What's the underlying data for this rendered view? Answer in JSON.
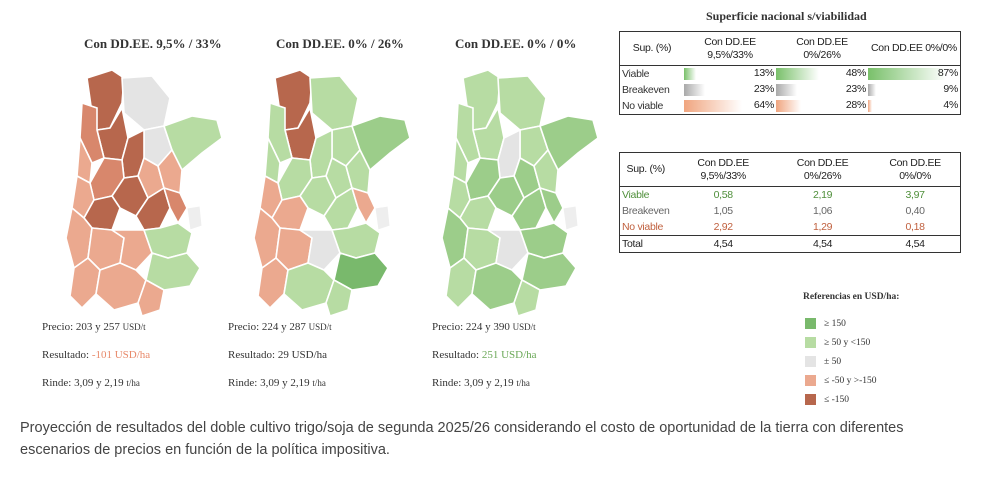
{
  "colors": {
    "dark_green": "#79b96c",
    "light_green": "#b7dca3",
    "neutral": "#e4e4e4",
    "light_red": "#eba98f",
    "dark_red": "#b7674d",
    "mid_red": "#d8876c",
    "mid_green": "#9ccd8a",
    "gray_bar": "#a9a9a9"
  },
  "maps": [
    {
      "title": "Con DD.EE. 9,5% / 33%",
      "precio_label": "Precio:",
      "precio_value": "203 y 257",
      "precio_unit": "USD/t",
      "resultado_label": "Resultado:",
      "resultado_value": "-101 USD/ha",
      "resultado_color": "#e8896a",
      "rinde_label": "Rinde:",
      "rinde_value": "3,09 y 2,19",
      "rinde_unit": "t/ha",
      "regions": [
        "dark_red",
        "neutral",
        "neutral",
        "dark_red",
        "mid_red",
        "light_red",
        "dark_red",
        "light_green",
        "light_red",
        "light_red",
        "mid_red",
        "dark_red",
        "light_red",
        "dark_red",
        "dark_red",
        "mid_red",
        "light_red",
        "light_red",
        "light_red",
        "light_green",
        "light_green",
        "light_red",
        "light_red",
        "light_red"
      ]
    },
    {
      "title": "Con DD.EE. 0% / 26%",
      "precio_label": "Precio:",
      "precio_value": "224 y 287",
      "precio_unit": "USD/t",
      "resultado_label": "Resultado:",
      "resultado_value": "29 USD/ha",
      "resultado_color": "#333333",
      "rinde_label": "Rinde:",
      "rinde_value": "3,09 y 2,19",
      "rinde_unit": "t/ha",
      "regions": [
        "dark_red",
        "light_green",
        "light_green",
        "dark_red",
        "light_green",
        "light_green",
        "light_green",
        "mid_green",
        "light_green",
        "light_green",
        "light_green",
        "light_green",
        "light_red",
        "light_red",
        "light_green",
        "light_red",
        "light_red",
        "light_red",
        "neutral",
        "light_green",
        "dark_green",
        "light_red",
        "light_green",
        "light_green"
      ]
    },
    {
      "title": "Con DD.EE. 0% / 0%",
      "precio_label": "Precio:",
      "precio_value": "224 y 390",
      "precio_unit": "USD/t",
      "resultado_label": "Resultado:",
      "resultado_value": "251 USD/ha",
      "resultado_color": "#6aa857",
      "rinde_label": "Rinde:",
      "rinde_value": "3,09 y 2,19",
      "rinde_unit": "t/ha",
      "regions": [
        "light_green",
        "light_green",
        "light_green",
        "light_green",
        "light_green",
        "light_green",
        "neutral",
        "mid_green",
        "mid_green",
        "light_green",
        "mid_green",
        "mid_green",
        "light_green",
        "light_green",
        "mid_green",
        "mid_green",
        "mid_green",
        "light_green",
        "neutral",
        "mid_green",
        "mid_green",
        "light_green",
        "mid_green",
        "light_green"
      ]
    }
  ],
  "table_title": "Superficie nacional s/viabilidad",
  "table1": {
    "header_label": "Sup. (%)",
    "columns": [
      "Con DD.EE 9,5%/33%",
      "Con DD.EE 0%/26%",
      "Con DD.EE 0%/0%"
    ],
    "rows": [
      {
        "label": "Viable",
        "values": [
          "13%",
          "48%",
          "87%"
        ],
        "fractions": [
          0.13,
          0.48,
          0.87
        ],
        "bar_color": "#79c06a",
        "label_color": "#333"
      },
      {
        "label": "Breakeven",
        "values": [
          "23%",
          "23%",
          "9%"
        ],
        "fractions": [
          0.23,
          0.23,
          0.09
        ],
        "bar_color": "#a9a9a9",
        "label_color": "#333"
      },
      {
        "label": "No viable",
        "values": [
          "64%",
          "28%",
          "4%"
        ],
        "fractions": [
          0.64,
          0.28,
          0.04
        ],
        "bar_color": "#f0a57f",
        "label_color": "#333"
      }
    ]
  },
  "table2": {
    "header_label": "Sup. (%)",
    "columns": [
      "Con DD.EE 9,5%/33%",
      "Con DD.EE 0%/26%",
      "Con DD.EE 0%/0%"
    ],
    "rows": [
      {
        "label": "Viable",
        "values": [
          "0,58",
          "2,19",
          "3,97"
        ],
        "color": "#4f8f3a"
      },
      {
        "label": "Breakeven",
        "values": [
          "1,05",
          "1,06",
          "0,40"
        ],
        "color": "#666666"
      },
      {
        "label": "No viable",
        "values": [
          "2,92",
          "1,29",
          "0,18"
        ],
        "color": "#c0603e"
      }
    ],
    "total": {
      "label": "Total",
      "values": [
        "4,54",
        "4,54",
        "4,54"
      ]
    }
  },
  "legend": {
    "title": "Referencias en USD/ha:",
    "items": [
      {
        "label": "≥ 150",
        "color": "#79b96c"
      },
      {
        "label": "≥ 50 y <150",
        "color": "#b7dca3"
      },
      {
        "label": "± 50",
        "color": "#e4e4e4"
      },
      {
        "label": "≤ -50 y >-150",
        "color": "#eba98f"
      },
      {
        "label": "≤ -150",
        "color": "#b7674d"
      }
    ]
  },
  "caption": "Proyección de resultados del doble cultivo trigo/soja de segunda 2025/26 considerando el costo de oportunidad de la tierra con diferentes escenarios de precios en función de la política impositiva."
}
